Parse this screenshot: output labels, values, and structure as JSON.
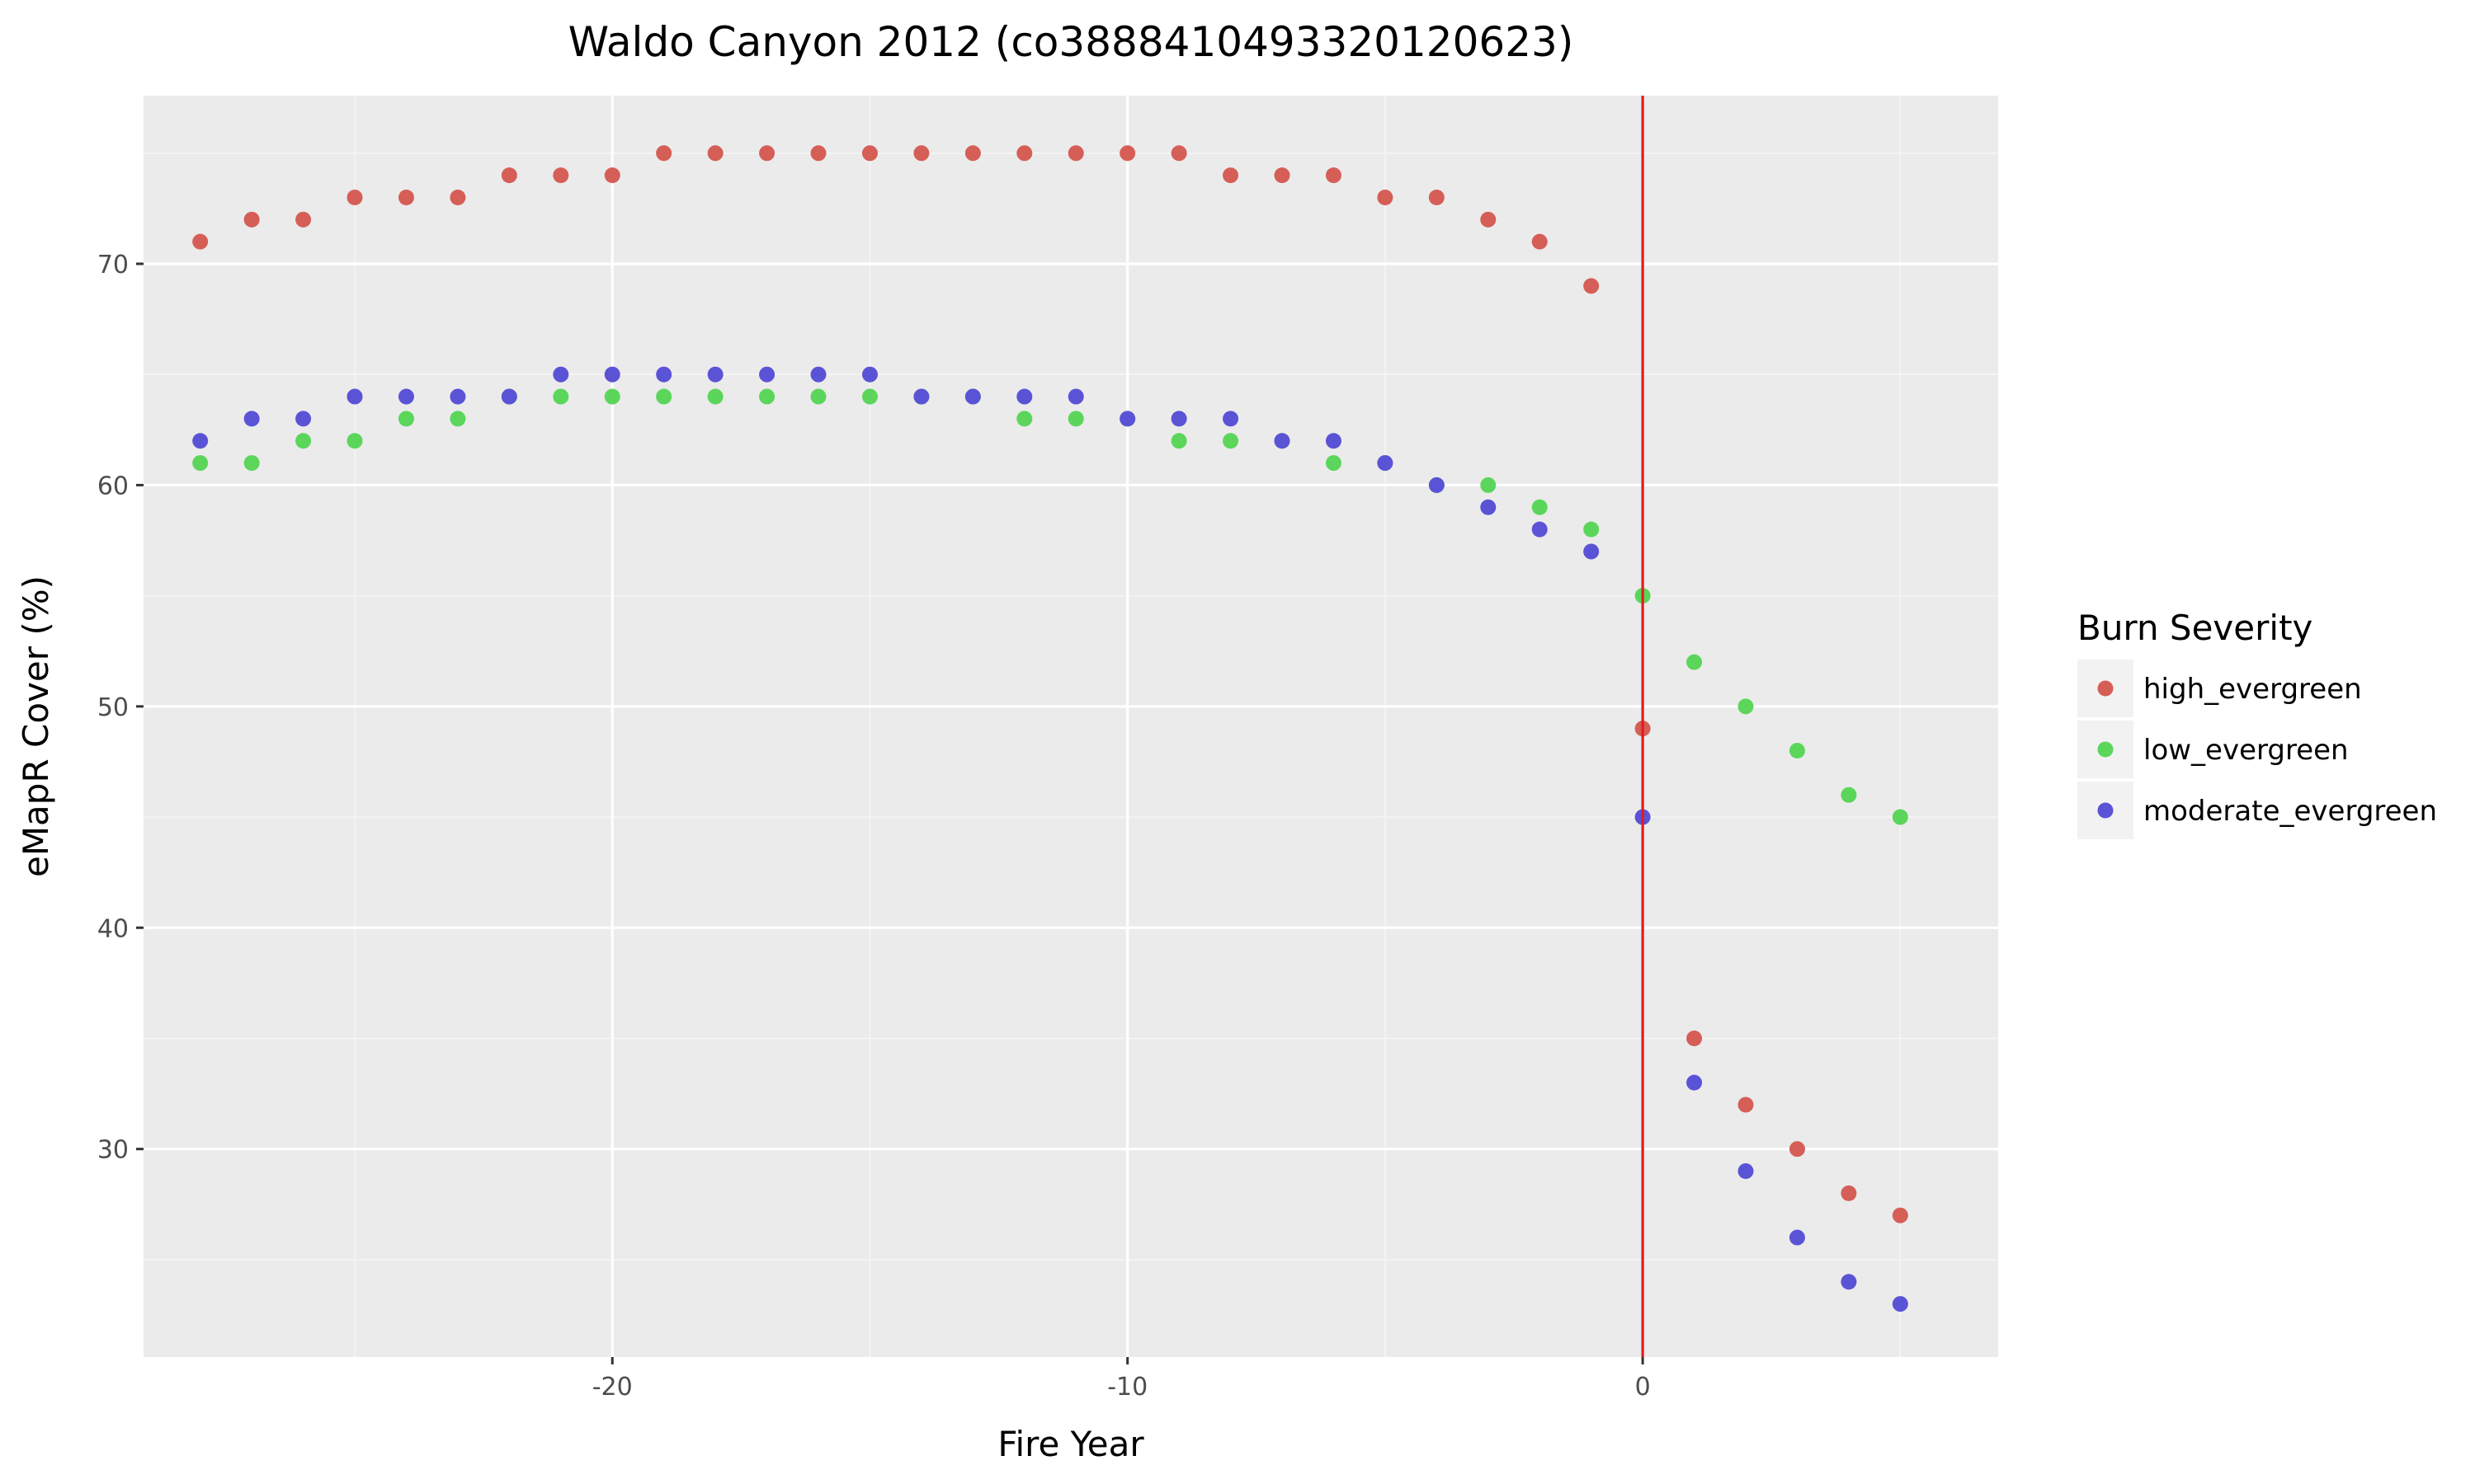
{
  "chart_data": {
    "type": "scatter",
    "title": "Waldo Canyon 2012 (co3888410493320120623)",
    "xlabel": "Fire Year",
    "ylabel": "eMapR Cover (%)",
    "xlim": [
      -29.1,
      6.9
    ],
    "ylim": [
      20.6,
      77.6
    ],
    "xticks": [
      -20,
      -10,
      0
    ],
    "yticks": [
      30,
      40,
      50,
      60,
      70
    ],
    "x_tick_labels": [
      "-20",
      "-10",
      "0"
    ],
    "y_tick_labels": [
      "30",
      "40",
      "50",
      "60",
      "70"
    ],
    "grid": true,
    "vline": {
      "x": 0,
      "color": "#e41a1c"
    },
    "legend": {
      "title": "Burn Severity",
      "placement": "right"
    },
    "series": [
      {
        "name": "high_evergreen",
        "color": "#d55e57",
        "x": [
          -28,
          -27,
          -26,
          -25,
          -24,
          -23,
          -22,
          -21,
          -20,
          -19,
          -18,
          -17,
          -16,
          -15,
          -14,
          -13,
          -12,
          -11,
          -10,
          -9,
          -8,
          -7,
          -6,
          -5,
          -4,
          -3,
          -2,
          -1,
          0,
          1,
          2,
          3,
          4,
          5
        ],
        "y": [
          71,
          72,
          72,
          73,
          73,
          73,
          74,
          74,
          74,
          75,
          75,
          75,
          75,
          75,
          75,
          75,
          75,
          75,
          75,
          75,
          74,
          74,
          74,
          73,
          73,
          72,
          71,
          69,
          49,
          35,
          32,
          30,
          28,
          27
        ]
      },
      {
        "name": "low_evergreen",
        "color": "#5bd65b",
        "x": [
          -28,
          -27,
          -26,
          -25,
          -24,
          -23,
          -22,
          -21,
          -20,
          -19,
          -18,
          -17,
          -16,
          -15,
          -14,
          -13,
          -12,
          -11,
          -10,
          -9,
          -8,
          -7,
          -6,
          -5,
          -4,
          -3,
          -2,
          -1,
          0,
          1,
          2,
          3,
          4,
          5
        ],
        "y": [
          61,
          61,
          62,
          62,
          63,
          63,
          64,
          64,
          64,
          64,
          64,
          64,
          64,
          64,
          64,
          64,
          63,
          63,
          63,
          62,
          62,
          62,
          61,
          61,
          60,
          60,
          59,
          58,
          55,
          52,
          50,
          48,
          46,
          45
        ]
      },
      {
        "name": "moderate_evergreen",
        "color": "#5b53d6",
        "x": [
          -28,
          -27,
          -26,
          -25,
          -24,
          -23,
          -22,
          -21,
          -20,
          -19,
          -18,
          -17,
          -16,
          -15,
          -14,
          -13,
          -12,
          -11,
          -10,
          -9,
          -8,
          -7,
          -6,
          -5,
          -4,
          -3,
          -2,
          -1,
          0,
          1,
          2,
          3,
          4,
          5
        ],
        "y": [
          62,
          63,
          63,
          64,
          64,
          64,
          64,
          65,
          65,
          65,
          65,
          65,
          65,
          65,
          64,
          64,
          64,
          64,
          63,
          63,
          63,
          62,
          62,
          61,
          60,
          59,
          58,
          57,
          45,
          33,
          29,
          26,
          24,
          23
        ]
      }
    ]
  }
}
